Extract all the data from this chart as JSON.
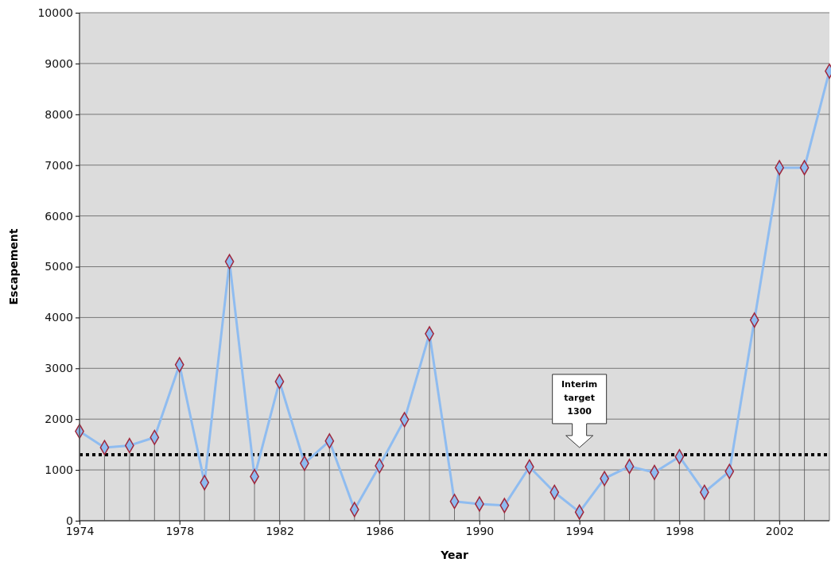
{
  "chart_data": {
    "type": "line",
    "xlabel": "Year",
    "ylabel": "Escapement",
    "x": [
      1974,
      1975,
      1976,
      1977,
      1978,
      1979,
      1980,
      1981,
      1982,
      1983,
      1984,
      1985,
      1986,
      1987,
      1988,
      1989,
      1990,
      1991,
      1992,
      1993,
      1994,
      1995,
      1996,
      1997,
      1998,
      1999,
      2000,
      2001,
      2002,
      2003,
      2004
    ],
    "series": [
      {
        "color": "#8fbcf0",
        "marker": "none",
        "values": [
          1760,
          1440,
          1480,
          1640,
          3070,
          750,
          5100,
          870,
          2740,
          1130,
          1570,
          220,
          1080,
          1990,
          3680,
          380,
          330,
          300,
          1060,
          560,
          170,
          830,
          1070,
          950,
          1260,
          560,
          970,
          3950,
          6950,
          6950,
          8850
        ]
      },
      {
        "type": "lollipop",
        "color": "#8fbcf0",
        "values": [
          1760,
          1440,
          1480,
          1640,
          3070,
          750,
          5100,
          870,
          2740,
          1130,
          1570,
          220,
          1080,
          1990,
          3680,
          380,
          330,
          300,
          1060,
          560,
          170,
          830,
          1070,
          950,
          1260,
          560,
          970,
          3950,
          6950,
          6950,
          8850
        ]
      }
    ],
    "xlim": [
      1974,
      2004
    ],
    "xticks": [
      1974,
      1978,
      1982,
      1986,
      1990,
      1994,
      1998,
      2002
    ],
    "ylim": [
      0,
      10000
    ],
    "yticks": [
      0,
      1000,
      2000,
      3000,
      4000,
      5000,
      6000,
      7000,
      8000,
      9000,
      10000
    ],
    "grid": "y",
    "marker": "diamond",
    "line_style": "solid",
    "ref_lines": [
      {
        "axis": "y",
        "value": 1300,
        "label": "Interim target 1300",
        "color": "#000000",
        "line_style": "dotted"
      }
    ]
  }
}
